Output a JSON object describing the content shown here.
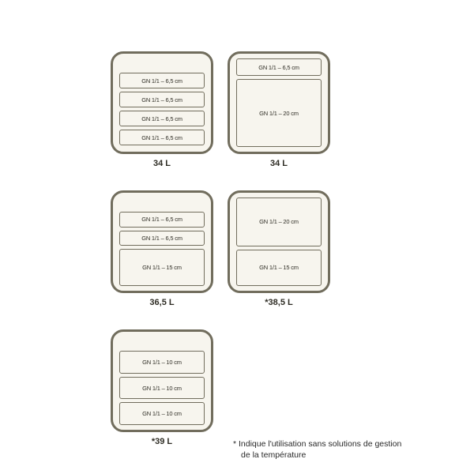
{
  "colors": {
    "panel_border": "#716d5d",
    "tray_border": "#716d5d",
    "panel_bg": "#f7f5ee",
    "tray_bg": "#f7f5ee",
    "caption": "#2e2c24",
    "footnote": "#2a2a2a"
  },
  "rows": [
    {
      "panels": [
        {
          "caption": "34 L",
          "top_gap": true,
          "trays": [
            {
              "label": "GN 1/1 – 6,5 cm",
              "h": 20
            },
            {
              "label": "GN 1/1 – 6,5 cm",
              "h": 20
            },
            {
              "label": "GN 1/1 – 6,5 cm",
              "h": 20
            },
            {
              "label": "GN 1/1 – 6,5 cm",
              "h": 20
            }
          ]
        },
        {
          "caption": "34 L",
          "top_gap": false,
          "trays": [
            {
              "label": "GN 1/1 – 6,5 cm",
              "h": 22
            },
            {
              "label": "GN 1/1 – 20 cm",
              "h": 86
            }
          ]
        }
      ]
    },
    {
      "panels": [
        {
          "caption": "36,5 L",
          "top_gap": true,
          "trays": [
            {
              "label": "GN 1/1 – 6,5 cm",
              "h": 20
            },
            {
              "label": "GN 1/1 – 6,5 cm",
              "h": 20
            },
            {
              "label": "GN 1/1 – 15 cm",
              "h": 48
            }
          ]
        },
        {
          "caption": "*38,5 L",
          "top_gap": false,
          "trays": [
            {
              "label": "GN 1/1 – 20 cm",
              "h": 64
            },
            {
              "label": "GN 1/1 – 15 cm",
              "h": 48
            }
          ]
        }
      ]
    },
    {
      "panels": [
        {
          "caption": "*39 L",
          "top_gap": true,
          "trays": [
            {
              "label": "GN 1/1 – 10 cm",
              "h": 30
            },
            {
              "label": "GN 1/1 – 10 cm",
              "h": 30
            },
            {
              "label": "GN 1/1 – 10 cm",
              "h": 30
            }
          ]
        }
      ]
    }
  ],
  "footnote": {
    "line1": "* Indique l'utilisation sans solutions de gestion",
    "line2": "de la température"
  }
}
